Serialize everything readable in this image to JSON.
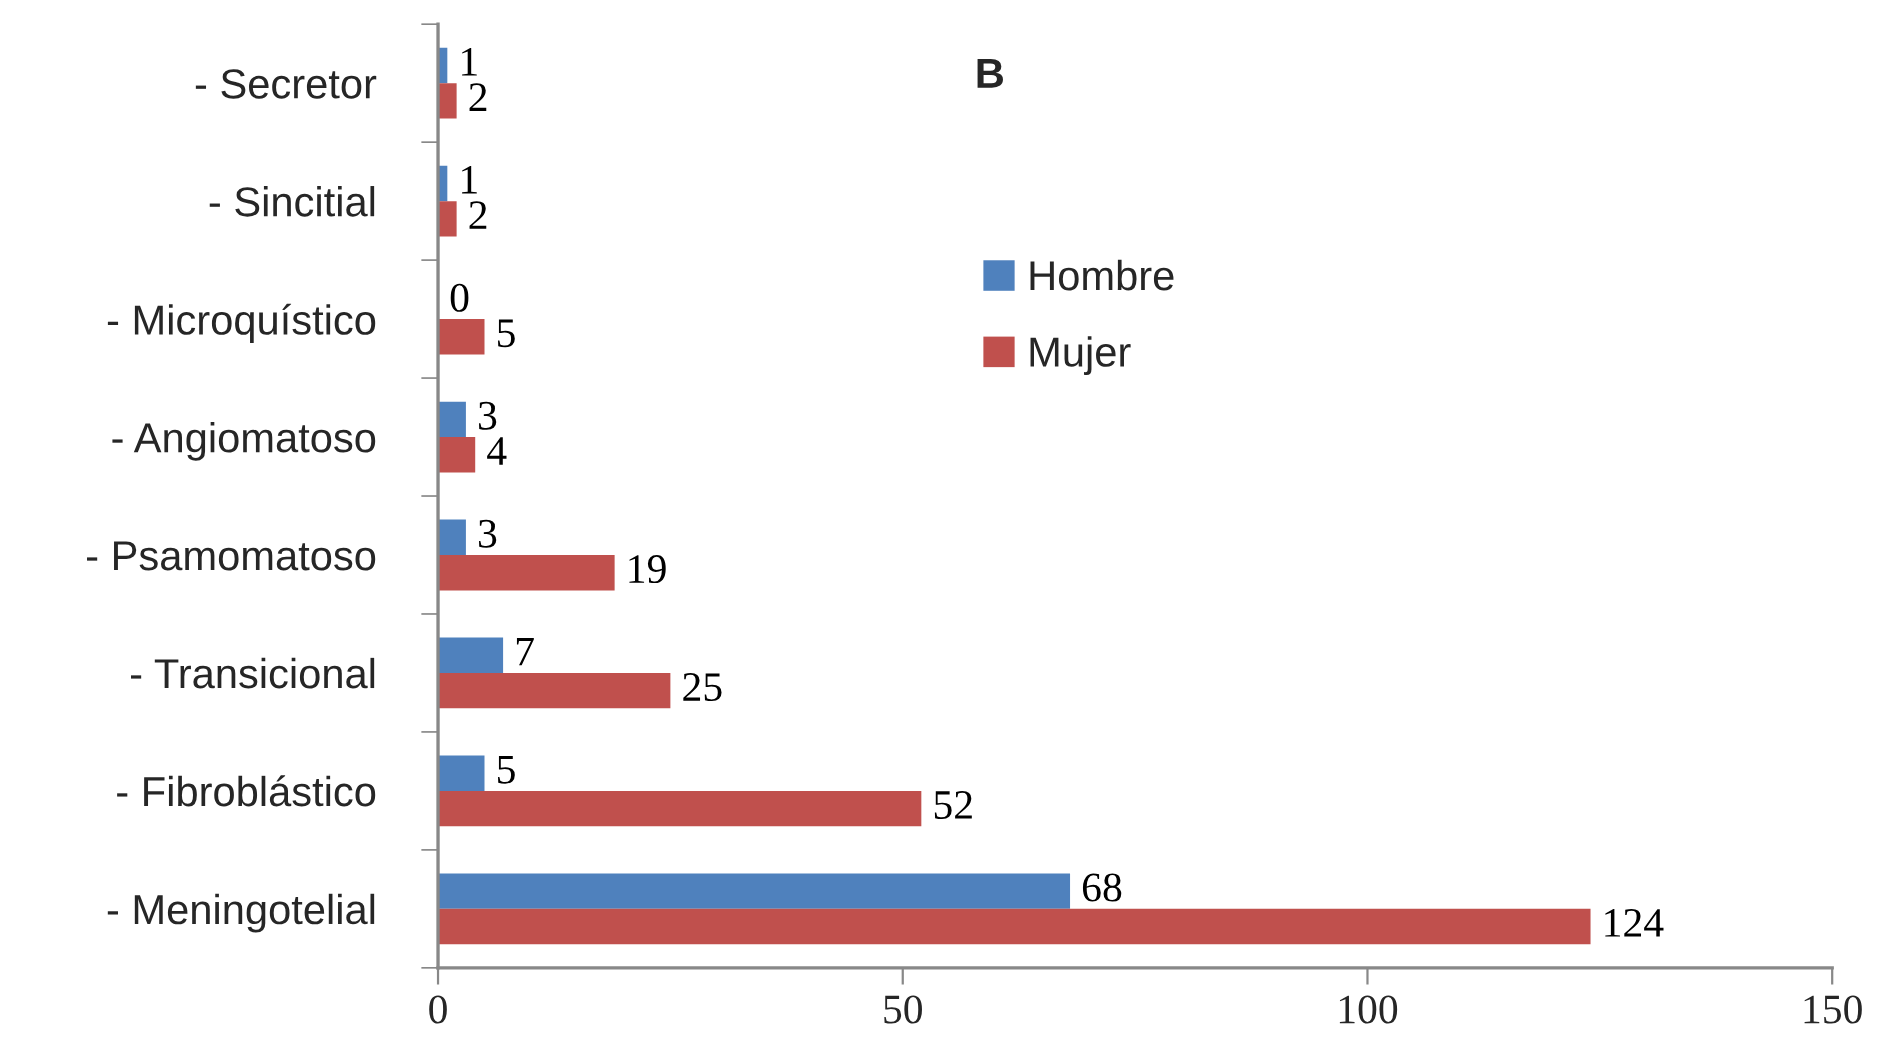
{
  "chart_data": {
    "type": "bar",
    "orientation": "horizontal",
    "title": "B",
    "categories": [
      "- Secretor",
      "- Sincitial",
      "- Microquístico",
      "- Angiomatoso",
      "- Psamomatoso",
      "- Transicional",
      "- Fibroblástico",
      "- Meningotelial"
    ],
    "series": [
      {
        "name": "Hombre",
        "color": "#4f81bd",
        "values": [
          1,
          1,
          0,
          3,
          3,
          7,
          5,
          68
        ]
      },
      {
        "name": "Mujer",
        "color": "#c0504d",
        "values": [
          2,
          2,
          5,
          4,
          19,
          25,
          52,
          124
        ]
      }
    ],
    "xlim": [
      0,
      150
    ],
    "xticks": [
      0,
      50,
      100,
      150
    ],
    "data_labels": true,
    "legend": "top",
    "grid": false
  }
}
